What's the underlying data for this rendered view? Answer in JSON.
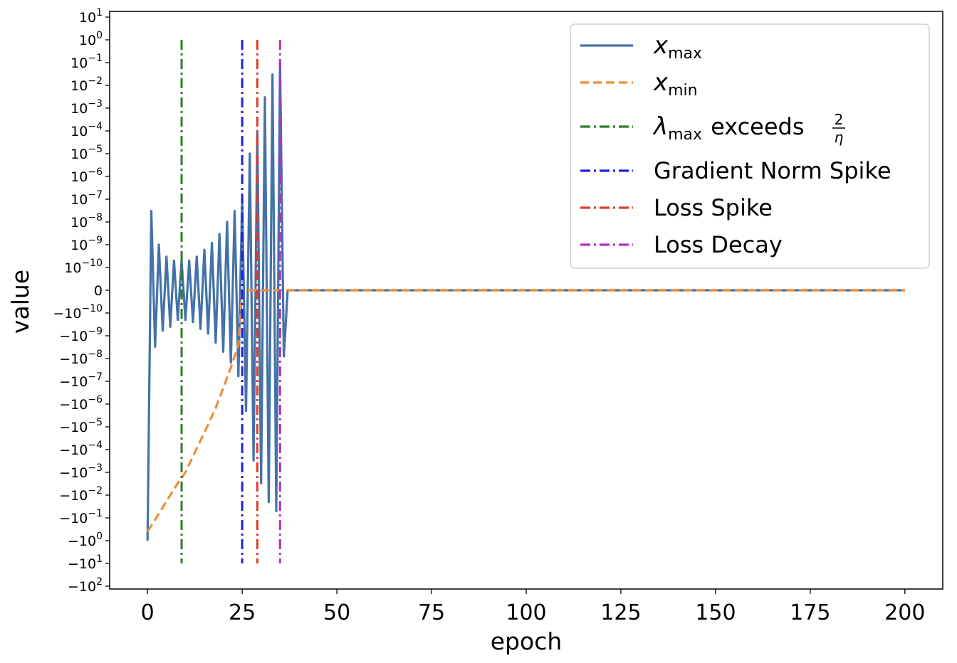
{
  "chart_data": {
    "type": "line",
    "title": "",
    "xlabel": "epoch",
    "ylabel": "value",
    "xlim": [
      -10,
      210
    ],
    "x_ticks": [
      0,
      25,
      50,
      75,
      100,
      125,
      150,
      175,
      200
    ],
    "x_tick_labels": [
      "0",
      "25",
      "50",
      "75",
      "100",
      "125",
      "150",
      "175",
      "200"
    ],
    "yscale": "symlog",
    "y_linthresh": 1e-10,
    "y_ticks": [
      10,
      1,
      0.1,
      0.01,
      0.001,
      0.0001,
      1e-05,
      1e-06,
      1e-07,
      1e-08,
      1e-09,
      1e-10,
      0,
      -1e-10,
      -1e-09,
      -1e-08,
      -1e-07,
      -1e-06,
      -1e-05,
      -0.0001,
      -0.001,
      -0.01,
      -0.1,
      -1,
      -10,
      -100
    ],
    "y_tick_labels": [
      {
        "base": "10",
        "exp": "1"
      },
      {
        "base": "10",
        "exp": "0"
      },
      {
        "base": "10",
        "exp": "-1"
      },
      {
        "base": "10",
        "exp": "-2"
      },
      {
        "base": "10",
        "exp": "-3"
      },
      {
        "base": "10",
        "exp": "-4"
      },
      {
        "base": "10",
        "exp": "-5"
      },
      {
        "base": "10",
        "exp": "-6"
      },
      {
        "base": "10",
        "exp": "-7"
      },
      {
        "base": "10",
        "exp": "-8"
      },
      {
        "base": "10",
        "exp": "-9"
      },
      {
        "base": "10",
        "exp": "-10"
      },
      {
        "base": "0",
        "exp": ""
      },
      {
        "base": "−10",
        "exp": "-10"
      },
      {
        "base": "−10",
        "exp": "-9"
      },
      {
        "base": "−10",
        "exp": "-8"
      },
      {
        "base": "−10",
        "exp": "-7"
      },
      {
        "base": "−10",
        "exp": "-6"
      },
      {
        "base": "−10",
        "exp": "-5"
      },
      {
        "base": "−10",
        "exp": "-4"
      },
      {
        "base": "−10",
        "exp": "-3"
      },
      {
        "base": "−10",
        "exp": "-2"
      },
      {
        "base": "−10",
        "exp": "-1"
      },
      {
        "base": "−10",
        "exp": "0"
      },
      {
        "base": "−10",
        "exp": "1"
      },
      {
        "base": "−10",
        "exp": "2"
      }
    ],
    "grid": false,
    "legend_position": "top-right",
    "series": [
      {
        "name": "x_max",
        "style": "solid",
        "color": "#4472a8",
        "x": [
          0,
          1,
          2,
          3,
          4,
          5,
          6,
          7,
          8,
          9,
          10,
          11,
          12,
          13,
          14,
          15,
          16,
          17,
          18,
          19,
          20,
          21,
          22,
          23,
          24,
          25,
          26,
          27,
          28,
          29,
          30,
          31,
          32,
          33,
          34,
          35,
          36,
          37,
          38,
          40,
          200
        ],
        "y": [
          -1,
          3e-08,
          -3e-09,
          1e-09,
          -6e-10,
          3e-10,
          -4e-10,
          2e-10,
          -2e-10,
          2e-10,
          -2e-10,
          2e-10,
          -2.5e-10,
          3e-10,
          -5e-10,
          6e-10,
          -8e-10,
          1.2e-09,
          -2e-09,
          3e-09,
          -5e-09,
          1e-08,
          -1.5e-08,
          3e-08,
          -6e-08,
          1e-07,
          -2e-06,
          1e-05,
          -0.0003,
          0.0001,
          -0.003,
          0.003,
          -0.02,
          0.03,
          -0.05,
          0.1,
          -8e-09,
          0,
          0,
          0,
          0
        ]
      },
      {
        "name": "x_min",
        "style": "dashed",
        "color": "#ee8d3a",
        "x": [
          0,
          2,
          4,
          6,
          8,
          10,
          12,
          14,
          16,
          18,
          20,
          22,
          24,
          25,
          26,
          30,
          40,
          200
        ],
        "y": [
          -0.4,
          -0.12,
          -0.035,
          -0.01,
          -0.003,
          -0.001,
          -0.0002,
          -4e-05,
          -8e-06,
          -1.5e-06,
          -2e-07,
          -2.5e-08,
          -2.5e-09,
          0,
          0,
          0,
          0,
          0
        ]
      }
    ],
    "vertical_lines": [
      {
        "name": "lambda_max_exceeds",
        "x": 9,
        "color": "#2e7d27",
        "ymin": -10,
        "ymax": 1
      },
      {
        "name": "gradient_norm_spike",
        "x": 25,
        "color": "#1f1fe6",
        "ymin": -10,
        "ymax": 1
      },
      {
        "name": "loss_spike",
        "x": 29,
        "color": "#e03a2a",
        "ymin": -10,
        "ymax": 1
      },
      {
        "name": "loss_decay",
        "x": 35,
        "color": "#b32fbf",
        "ymin": -10,
        "ymax": 1
      }
    ],
    "legend": [
      {
        "key": "x_max",
        "label_main": "x",
        "label_sub": "max",
        "style": "solid",
        "color": "#4472a8"
      },
      {
        "key": "x_min",
        "label_main": "x",
        "label_sub": "min",
        "style": "dashed",
        "color": "#ee8d3a"
      },
      {
        "key": "lambda_max_exceeds",
        "label_main": "λ",
        "label_sub": "max",
        "label_rest": "exceeds",
        "frac_num": "2",
        "frac_den": "η",
        "style": "dashdot",
        "color": "#2e7d27"
      },
      {
        "key": "gradient_norm_spike",
        "label_main": "Gradient Norm Spike",
        "style": "dashdot",
        "color": "#1f1fe6"
      },
      {
        "key": "loss_spike",
        "label_main": "Loss Spike",
        "style": "dashdot",
        "color": "#e03a2a"
      },
      {
        "key": "loss_decay",
        "label_main": "Loss Decay",
        "style": "dashdot",
        "color": "#b32fbf"
      }
    ]
  }
}
